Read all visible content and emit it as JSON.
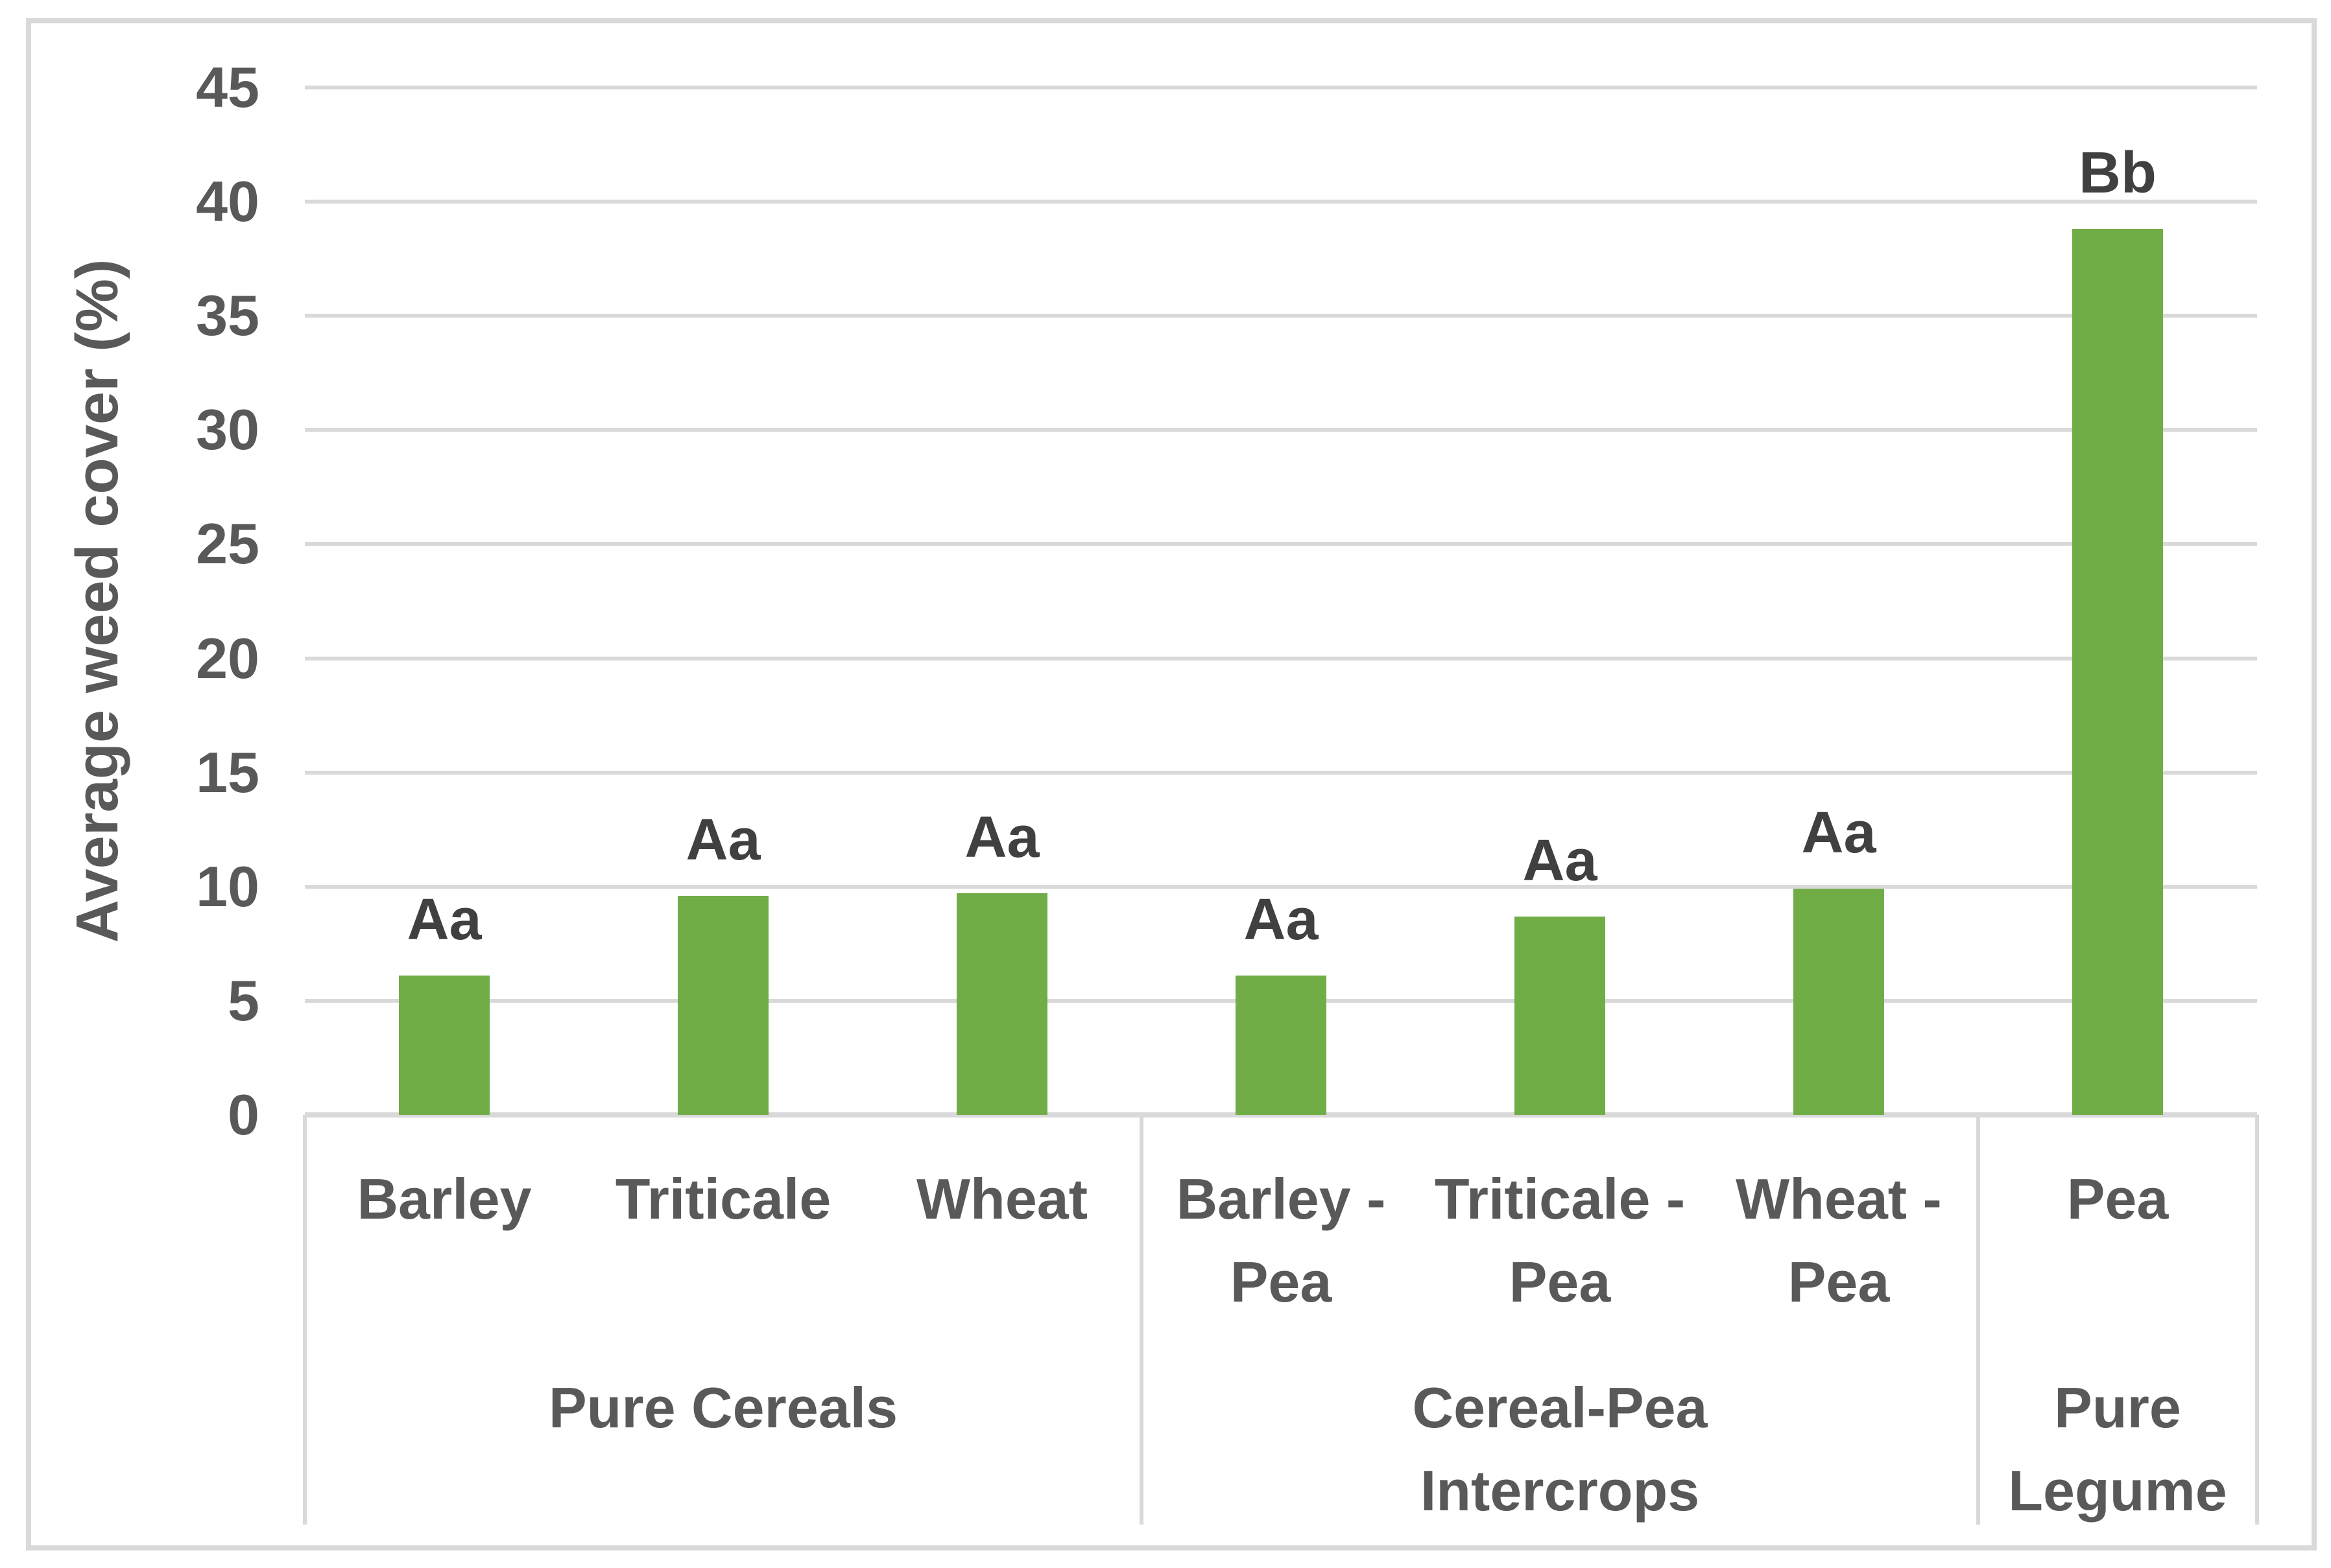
{
  "figure": {
    "background": "#FFFFFF",
    "border_color": "#D9D9D9"
  },
  "chart_data": {
    "type": "bar",
    "title": "",
    "ylabel": "Average weed cover (%)",
    "xlabel": "",
    "ylim": [
      0,
      45
    ],
    "ytick_step": 5,
    "yticks": [
      0,
      5,
      10,
      15,
      20,
      25,
      30,
      35,
      40,
      45
    ],
    "grid": true,
    "legend_position": "none",
    "categories": [
      "Barley",
      "Triticale",
      "Wheat",
      "Barley - Pea",
      "Triticale - Pea",
      "Wheat - Pea",
      "Pea"
    ],
    "category_label_lines": [
      [
        "Barley"
      ],
      [
        "Triticale"
      ],
      [
        "Wheat"
      ],
      [
        "Barley -",
        "Pea"
      ],
      [
        "Triticale -",
        "Pea"
      ],
      [
        "Wheat -",
        "Pea"
      ],
      [
        "Pea"
      ]
    ],
    "values": [
      6.1,
      9.6,
      9.7,
      6.1,
      8.7,
      9.9,
      38.8
    ],
    "bar_labels": [
      "Aa",
      "Aa",
      "Aa",
      "Aa",
      "Aa",
      "Aa",
      "Bb"
    ],
    "groups": [
      {
        "label_lines": [
          "Pure Cereals"
        ],
        "span": 3
      },
      {
        "label_lines": [
          "Cereal-Pea",
          "Intercrops"
        ],
        "span": 3
      },
      {
        "label_lines": [
          "Pure",
          "Legume"
        ],
        "span": 1
      }
    ],
    "colors": {
      "bar": "#70AD47",
      "axis_text": "#595959",
      "bar_label_text": "#404040",
      "gridline": "#D9D9D9",
      "axis_line": "#D9D9D9",
      "chart_border": "#D9D9D9"
    }
  }
}
